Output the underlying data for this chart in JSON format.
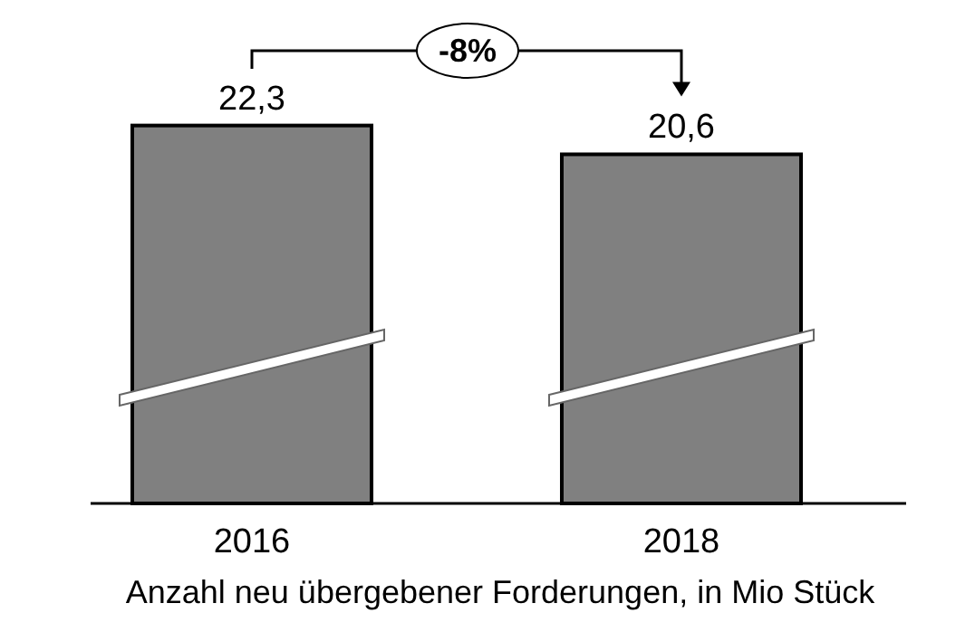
{
  "chart_data": {
    "type": "bar",
    "xlabel": "Anzahl neu übergebener Forderungen, in Mio Stück",
    "categories": [
      "2016",
      "2018"
    ],
    "values": [
      22.3,
      20.6
    ],
    "value_labels": [
      "22,3",
      "20,6"
    ],
    "color": "#808080",
    "tick_labels": "x",
    "annotations": [
      "-8%"
    ]
  }
}
